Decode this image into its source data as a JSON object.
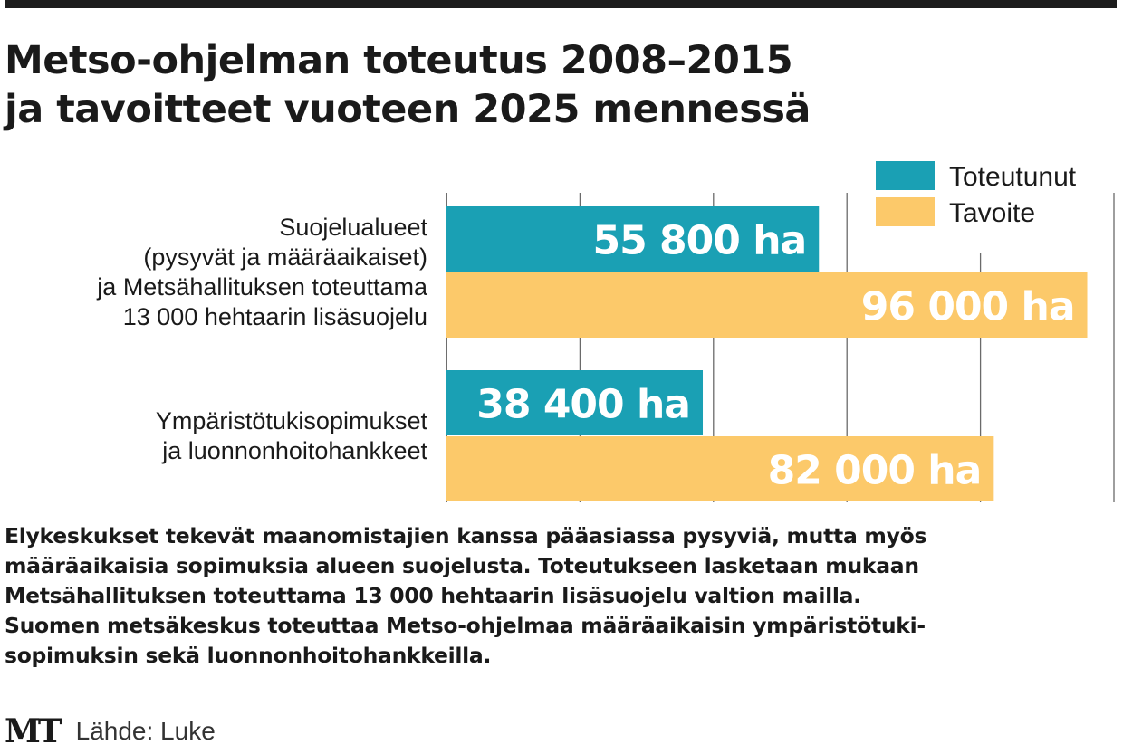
{
  "header": {
    "title_line1": "Metso-ohjelman toteutus 2008–2015",
    "title_line2": "ja tavoitteet vuoteen 2025 mennessä"
  },
  "chart_data": {
    "type": "bar",
    "orientation": "horizontal",
    "categories": [
      [
        "Suojelualueet",
        "(pysyvät ja määräaikaiset)",
        "ja Metsähallituksen toteuttama",
        "13 000 hehtaarin lisäsuojelu"
      ],
      [
        "Ympäristötukisopimukset",
        "ja luonnonhoitohankkeet"
      ]
    ],
    "series": [
      {
        "name": "Toteutunut",
        "color": "#1aa0b4",
        "values": [
          55800,
          38400
        ],
        "labels": [
          "55 800 ha",
          "38 400 ha"
        ]
      },
      {
        "name": "Tavoite",
        "color": "#fcc96a",
        "values": [
          96000,
          82000
        ],
        "labels": [
          "96 000 ha",
          "82 000 ha"
        ]
      }
    ],
    "xlim": [
      0,
      100000
    ],
    "grid": true,
    "legend_position": "top-right"
  },
  "description": [
    "Elykeskukset tekevät maanomistajien kanssa pääasiassa pysyviä, mutta myös",
    "määräaikaisia sopimuksia alueen suojelusta. Toteutukseen lasketaan mukaan",
    "Metsähallituksen toteuttama 13 000 hehtaarin lisäsuojelu valtion mailla.",
    "Suomen metsäkeskus toteuttaa Metso-ohjelmaa määräaikaisin ympäristötuki-",
    "sopimuksin sekä luonnonhoitohankkeilla."
  ],
  "footer": {
    "logo": "MT",
    "source": "Lähde: Luke"
  }
}
